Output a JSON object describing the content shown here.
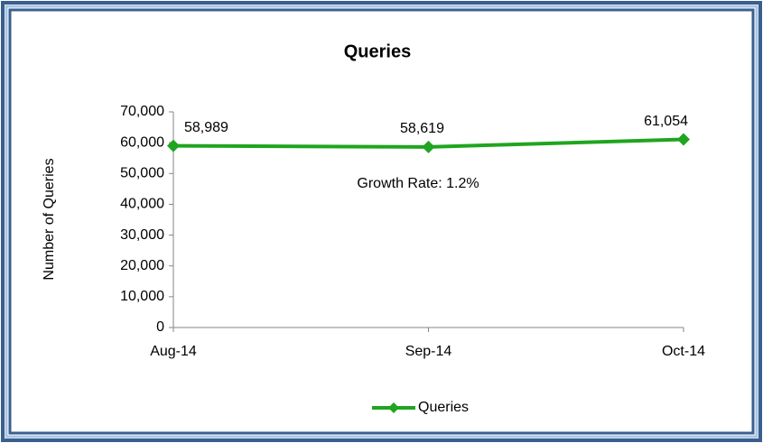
{
  "chart_data": {
    "type": "line",
    "title": "Queries",
    "y_label": "Number of Queries",
    "annotation": "Growth Rate:  1.2%",
    "categories": [
      "Aug-14",
      "Sep-14",
      "Oct-14"
    ],
    "series": [
      {
        "name": "Queries",
        "color": "#1fa51f",
        "values": [
          58989,
          58619,
          61054
        ],
        "value_labels": [
          "58,989",
          "58,619",
          "61,054"
        ]
      }
    ],
    "ylim": [
      0,
      70000
    ],
    "yticks": [
      0,
      {
        "value": 10000,
        "label": "10,000"
      },
      {
        "value": 20000,
        "label": "20,000"
      },
      {
        "value": 30000,
        "label": "30,000"
      },
      {
        "value": 40000,
        "label": "40,000"
      },
      {
        "value": 50000,
        "label": "50,000"
      },
      {
        "value": 60000,
        "label": "60,000"
      },
      {
        "value": 70000,
        "label": "70,000"
      }
    ],
    "grid": false,
    "legend": "bottom"
  }
}
